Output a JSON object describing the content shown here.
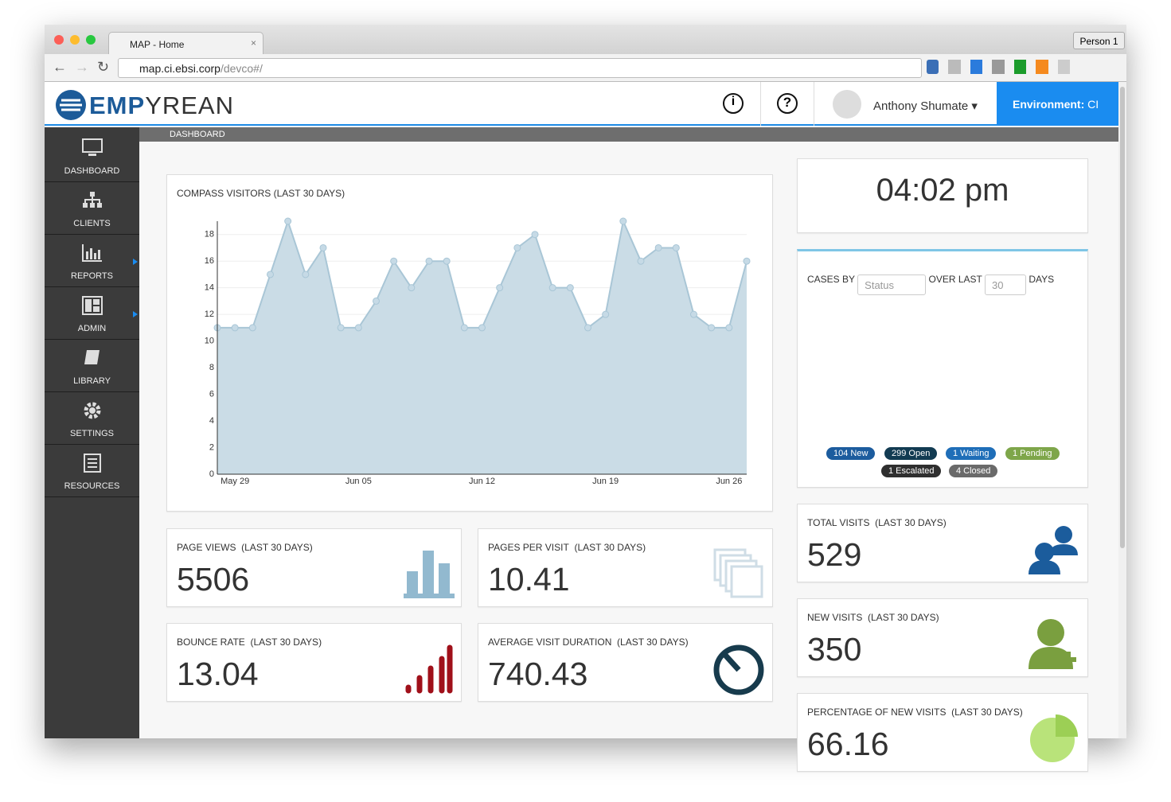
{
  "browser": {
    "tab_title": "MAP - Home",
    "profile": "Person 1",
    "url_host": "map.ci.ebsi.corp",
    "url_path": "/devco#/"
  },
  "header": {
    "logo_emp": "EMP",
    "logo_rest": "YREAN",
    "user": "Anthony Shumate",
    "environment_label": "Environment:",
    "environment_value": "CI"
  },
  "sidebar": [
    "DASHBOARD",
    "CLIENTS",
    "REPORTS",
    "ADMIN",
    "LIBRARY",
    "SETTINGS",
    "RESOURCES"
  ],
  "breadcrumb": "DASHBOARD",
  "chart_data": {
    "type": "area",
    "title": "COMPASS VISITORS (LAST 30 DAYS)",
    "categories": [
      null,
      "May 29",
      null,
      null,
      null,
      null,
      null,
      null,
      "Jun 05",
      null,
      null,
      null,
      null,
      null,
      null,
      "Jun 12",
      null,
      null,
      null,
      null,
      null,
      null,
      "Jun 19",
      null,
      null,
      null,
      null,
      null,
      null,
      "Jun 26",
      null
    ],
    "values": [
      11,
      11,
      11,
      15,
      19,
      15,
      17,
      11,
      11,
      13,
      16,
      14,
      16,
      16,
      11,
      11,
      14,
      17,
      18,
      14,
      14,
      11,
      12,
      19,
      16,
      17,
      17,
      12,
      11,
      11,
      16
    ],
    "color": "#a9c6d6",
    "fill": "#cadce6",
    "ylim": [
      0,
      19
    ],
    "yticks": [
      0,
      2,
      4,
      6,
      8,
      10,
      12,
      14,
      16,
      18
    ],
    "grid": true
  },
  "stats": [
    {
      "label": "PAGE VIEWS",
      "period": "(LAST 30 DAYS)",
      "value": "5506"
    },
    {
      "label": "PAGES PER VISIT",
      "period": "(LAST 30 DAYS)",
      "value": "10.41"
    },
    {
      "label": "BOUNCE RATE",
      "period": "(LAST 30 DAYS)",
      "value": "13.04"
    },
    {
      "label": "AVERAGE VISIT DURATION",
      "period": "(LAST 30 DAYS)",
      "value": "740.43"
    }
  ],
  "clock": "04:02 pm",
  "cases": {
    "by": "CASES BY",
    "status": "Status",
    "over": "OVER LAST",
    "days_value": "30",
    "days": "DAYS",
    "badges": [
      "104 New",
      "299 Open",
      "1 Waiting",
      "1 Pending",
      "1 Escalated",
      "4 Closed"
    ]
  },
  "visits": [
    {
      "label": "TOTAL VISITS",
      "period": "(LAST 30 DAYS)",
      "value": "529"
    },
    {
      "label": "NEW VISITS",
      "period": "(LAST 30 DAYS)",
      "value": "350"
    },
    {
      "label": "PERCENTAGE OF NEW VISITS",
      "period": "(LAST 30 DAYS)",
      "value": "66.16"
    }
  ]
}
